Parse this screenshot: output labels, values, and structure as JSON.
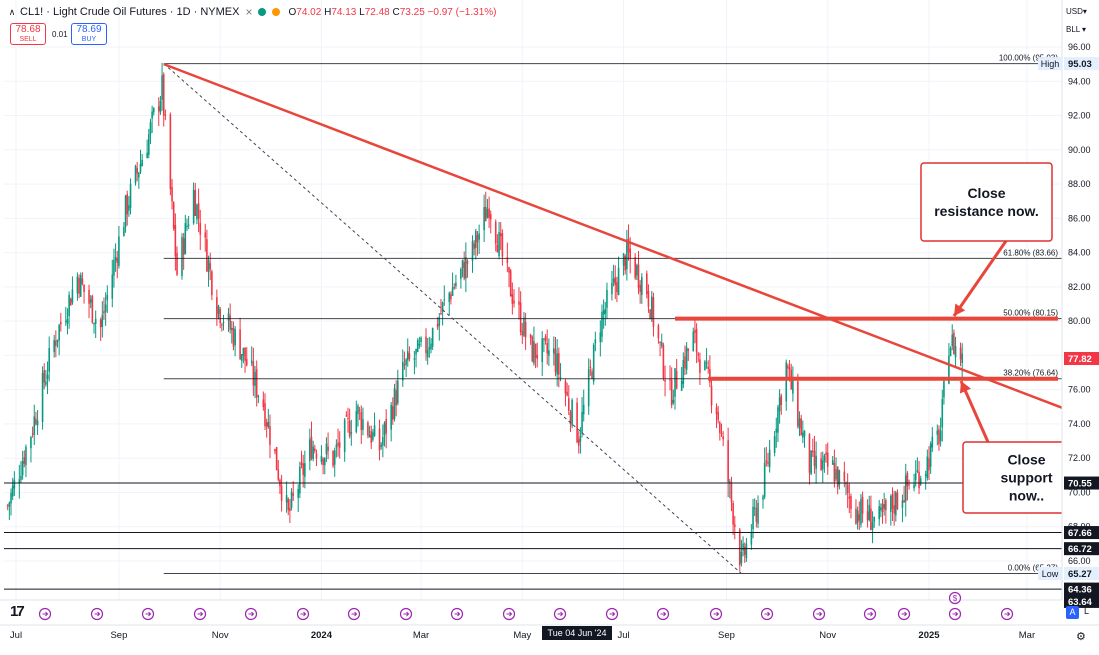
{
  "header": {
    "title": "CL1! · Light Crude Oil Futures · 1D · NYMEX",
    "ohlc": [
      {
        "k": "O",
        "v": "74.02"
      },
      {
        "k": "H",
        "v": "74.13"
      },
      {
        "k": "L",
        "v": "72.48"
      },
      {
        "k": "C",
        "v": "73.25 −0.97 (−1.31%)"
      }
    ]
  },
  "trade": {
    "sell_price": "78.68",
    "sell_label": "SELL",
    "buy_price": "78.69",
    "buy_label": "BUY",
    "spread": "0.01"
  },
  "scale_controls": {
    "currency": "USD",
    "unit": "BLL"
  },
  "chart_data": {
    "type": "candlestick",
    "symbol": "CL1!",
    "timeframe": "1D",
    "ylim": [
      63.5,
      96.6
    ],
    "y_ticks": [
      66.0,
      68.0,
      70.0,
      72.0,
      74.0,
      76.0,
      78.0,
      80.0,
      82.0,
      84.0,
      86.0,
      88.0,
      90.0,
      92.0,
      94.0,
      96.0
    ],
    "x_tick_labels": [
      "Jul",
      "Sep",
      "Nov",
      "2024",
      "Mar",
      "May",
      "Jul",
      "Sep",
      "Nov",
      "2025",
      "Mar"
    ],
    "approx_close_path": [
      [
        "2023-06-26",
        69.2
      ],
      [
        "2023-07-10",
        73.5
      ],
      [
        "2023-07-24",
        78.8
      ],
      [
        "2023-08-07",
        82.6
      ],
      [
        "2023-08-21",
        79.6
      ],
      [
        "2023-09-05",
        86.5
      ],
      [
        "2023-09-18",
        90.5
      ],
      [
        "2023-09-27",
        93.6
      ],
      [
        "2023-10-06",
        82.8
      ],
      [
        "2023-10-16",
        87.5
      ],
      [
        "2023-10-30",
        81.0
      ],
      [
        "2023-11-13",
        78.5
      ],
      [
        "2023-11-27",
        75.2
      ],
      [
        "2023-12-12",
        68.6
      ],
      [
        "2023-12-26",
        72.8
      ],
      [
        "2024-01-08",
        72.0
      ],
      [
        "2024-01-22",
        74.8
      ],
      [
        "2024-02-05",
        72.6
      ],
      [
        "2024-02-20",
        77.3
      ],
      [
        "2024-03-04",
        78.5
      ],
      [
        "2024-03-18",
        81.6
      ],
      [
        "2024-04-01",
        84.0
      ],
      [
        "2024-04-11",
        86.9
      ],
      [
        "2024-04-22",
        82.5
      ],
      [
        "2024-05-06",
        78.3
      ],
      [
        "2024-05-20",
        78.0
      ],
      [
        "2024-06-04",
        73.3
      ],
      [
        "2024-06-17",
        80.0
      ],
      [
        "2024-07-03",
        83.9
      ],
      [
        "2024-07-15",
        81.9
      ],
      [
        "2024-07-29",
        75.7
      ],
      [
        "2024-08-12",
        79.0
      ],
      [
        "2024-08-26",
        75.0
      ],
      [
        "2024-09-10",
        65.8
      ],
      [
        "2024-09-23",
        70.4
      ],
      [
        "2024-10-07",
        77.4
      ],
      [
        "2024-10-21",
        71.6
      ],
      [
        "2024-11-04",
        71.4
      ],
      [
        "2024-11-18",
        69.0
      ],
      [
        "2024-12-02",
        68.3
      ],
      [
        "2024-12-16",
        70.0
      ],
      [
        "2024-12-30",
        71.6
      ],
      [
        "2025-01-08",
        73.6
      ],
      [
        "2025-01-13",
        78.8
      ],
      [
        "2025-01-16",
        78.6
      ],
      [
        "2025-01-21",
        77.8
      ]
    ],
    "fibonacci": [
      {
        "level": "100.00%",
        "price": 95.03,
        "label": "100.00% (95.03)"
      },
      {
        "level": "61.80%",
        "price": 83.66,
        "label": "61.80% (83.66)"
      },
      {
        "level": "50.00%",
        "price": 80.15,
        "label": "50.00% (80.15)"
      },
      {
        "level": "38.20%",
        "price": 76.64,
        "label": "38.20% (76.64)"
      },
      {
        "level": "0.00%",
        "price": 65.27,
        "label": "0.00% (65.27)"
      }
    ],
    "horizontal_lines": [
      70.55,
      67.66,
      66.72,
      64.36,
      63.64
    ],
    "trendline": {
      "from": [
        "2023-09-28",
        95.0
      ],
      "to": [
        "2025-03-26",
        74.8
      ]
    },
    "fib_diagonal": {
      "from": [
        "2023-09-28",
        95.03
      ],
      "to": [
        "2024-09-10",
        65.27
      ]
    },
    "resistance_line": {
      "from_date": "2024-08-01",
      "price": 80.15
    },
    "support_line": {
      "from_date": "2024-08-21",
      "price": 76.64
    },
    "price_labels": [
      {
        "text": "95.03",
        "tag": "High",
        "price": 95.03,
        "style": "light"
      },
      {
        "text": "77.82",
        "price": 77.82,
        "style": "red"
      },
      {
        "text": "70.55",
        "price": 70.55,
        "style": "dark"
      },
      {
        "text": "67.66",
        "price": 67.66,
        "style": "dark"
      },
      {
        "text": "66.72",
        "price": 66.72,
        "style": "dark"
      },
      {
        "text": "65.27",
        "tag": "Low",
        "price": 65.27,
        "style": "light"
      },
      {
        "text": "64.36",
        "price": 64.36,
        "style": "dark"
      },
      {
        "text": "63.64",
        "price": 63.64,
        "style": "dark"
      }
    ],
    "annotations": [
      {
        "text": "Close resistance now.",
        "lines": [
          "Close",
          "resistance now."
        ]
      },
      {
        "text": "Close support now..",
        "lines": [
          "Close",
          "support",
          "now.."
        ]
      }
    ],
    "crosshair_time": "Tue 04 Jun '24",
    "colors": {
      "up": "#089981",
      "down": "#f23645",
      "drawing": "#e8463a"
    }
  }
}
